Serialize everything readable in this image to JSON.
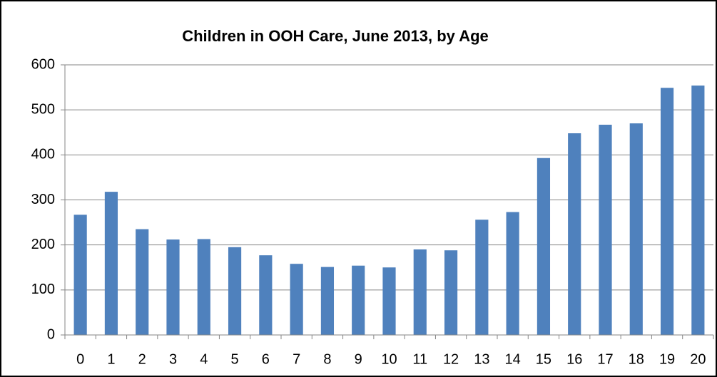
{
  "chart_data": {
    "type": "bar",
    "title": "Children in OOH Care, June 2013, by Age",
    "categories": [
      "0",
      "1",
      "2",
      "3",
      "4",
      "5",
      "6",
      "7",
      "8",
      "9",
      "10",
      "11",
      "12",
      "13",
      "14",
      "15",
      "16",
      "17",
      "18",
      "19",
      "20"
    ],
    "values": [
      267,
      318,
      235,
      212,
      213,
      195,
      177,
      158,
      151,
      154,
      150,
      190,
      188,
      256,
      273,
      393,
      448,
      467,
      470,
      549,
      554
    ],
    "color": "#4f81bd",
    "ylim": [
      0,
      600
    ],
    "yticks": [
      0,
      100,
      200,
      300,
      400,
      500,
      600
    ],
    "grid": true
  }
}
